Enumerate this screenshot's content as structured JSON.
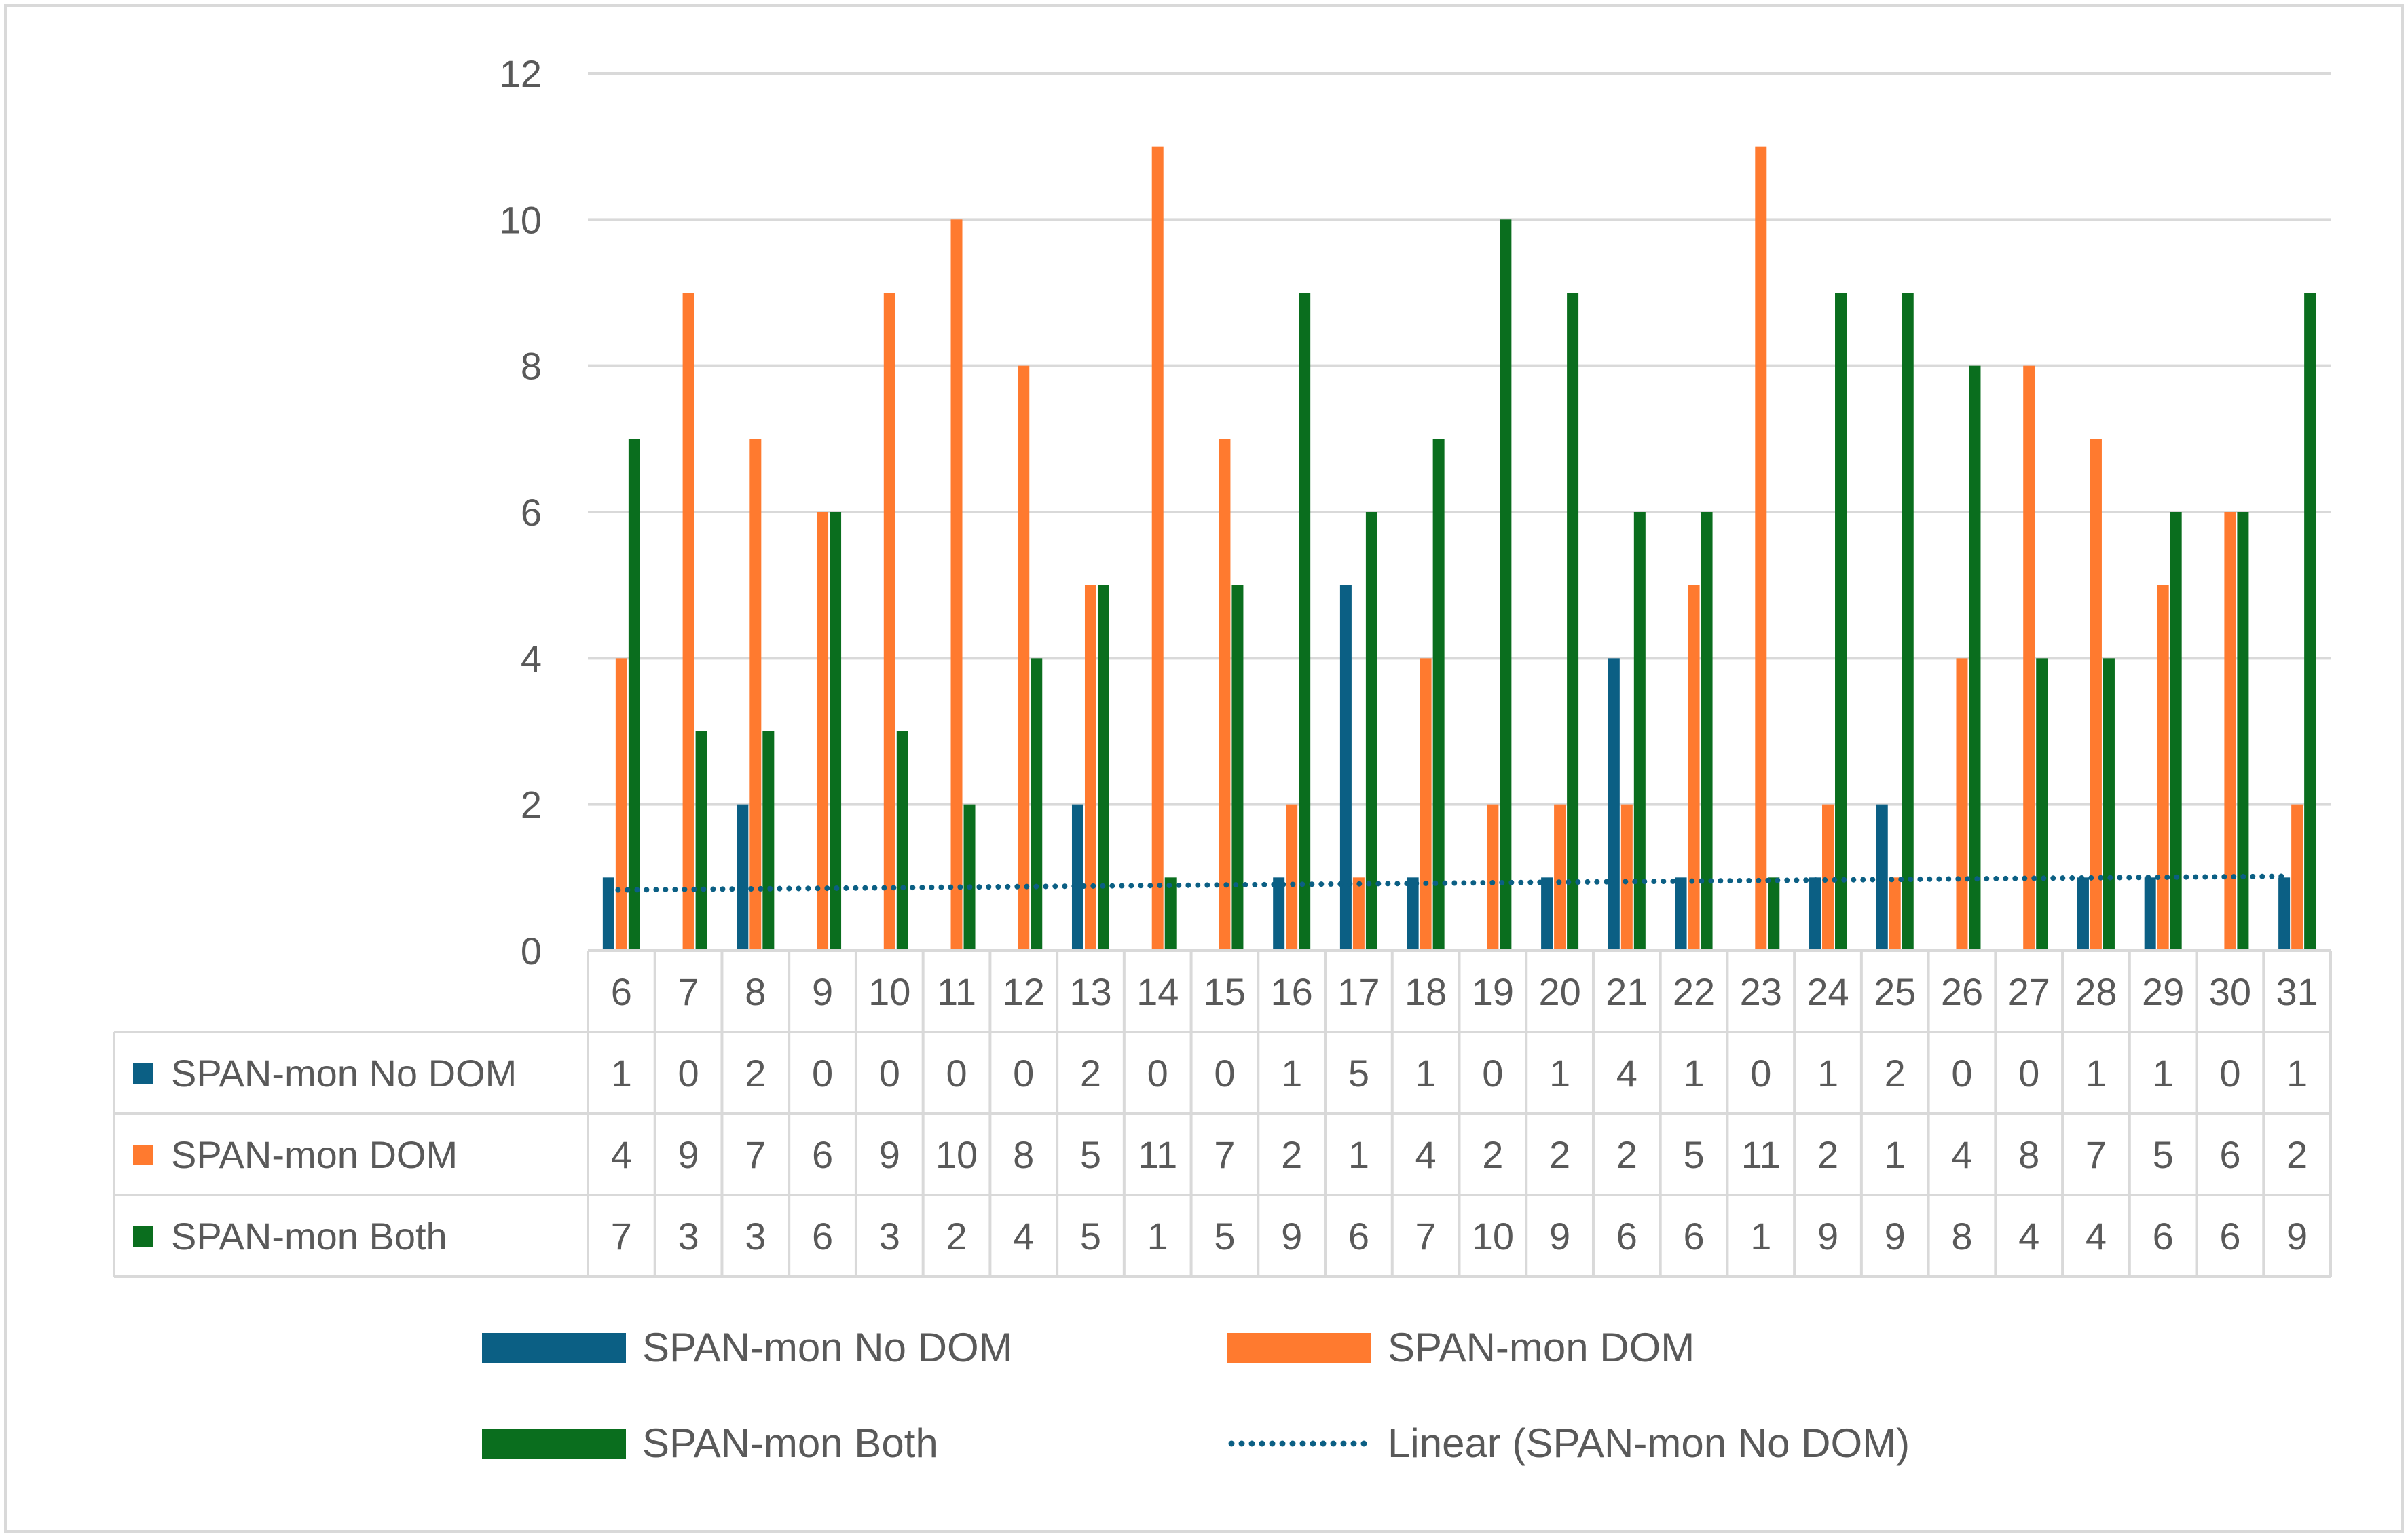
{
  "chart_data": {
    "type": "bar",
    "title": "",
    "xlabel": "",
    "ylabel": "",
    "ylim": [
      0,
      12
    ],
    "yticks": [
      0,
      2,
      4,
      6,
      8,
      10,
      12
    ],
    "grid": true,
    "categories": [
      "6",
      "7",
      "8",
      "9",
      "10",
      "11",
      "12",
      "13",
      "14",
      "15",
      "16",
      "17",
      "18",
      "19",
      "20",
      "21",
      "22",
      "23",
      "24",
      "25",
      "26",
      "27",
      "28",
      "29",
      "30",
      "31"
    ],
    "series": [
      {
        "name": "SPAN-mon No DOM",
        "color": "#0B5F84",
        "values": [
          1,
          0,
          2,
          0,
          0,
          0,
          0,
          2,
          0,
          0,
          1,
          5,
          1,
          0,
          1,
          4,
          1,
          0,
          1,
          2,
          0,
          0,
          1,
          1,
          0,
          1
        ]
      },
      {
        "name": "SPAN-mon DOM",
        "color": "#FF7A2F",
        "values": [
          4,
          9,
          7,
          6,
          9,
          10,
          8,
          5,
          11,
          7,
          2,
          1,
          4,
          2,
          2,
          2,
          5,
          11,
          2,
          1,
          4,
          8,
          7,
          5,
          6,
          2
        ]
      },
      {
        "name": "SPAN-mon Both",
        "color": "#0A6E1E",
        "values": [
          7,
          3,
          3,
          6,
          3,
          2,
          4,
          5,
          1,
          5,
          9,
          6,
          7,
          10,
          9,
          6,
          6,
          1,
          9,
          9,
          8,
          4,
          4,
          6,
          6,
          9
        ]
      }
    ],
    "trendline": {
      "name": "Linear (SPAN-mon No DOM)",
      "of_series": "SPAN-mon No DOM",
      "type": "linear",
      "color": "#0B5F84"
    },
    "data_table": true,
    "legend_position": "bottom"
  }
}
